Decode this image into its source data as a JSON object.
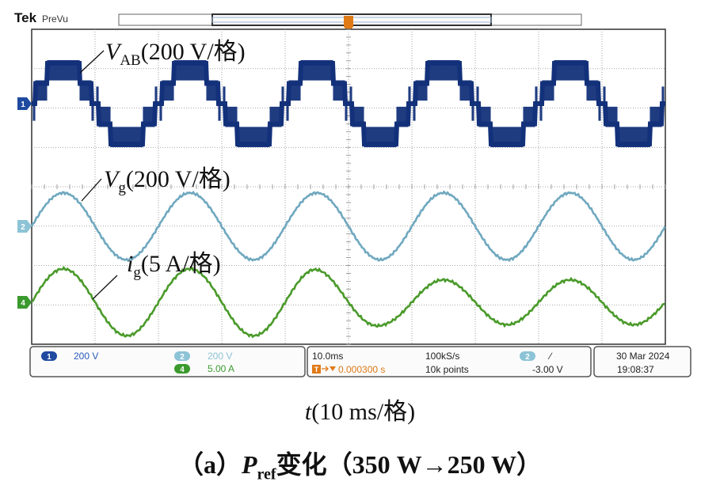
{
  "header": {
    "brand": "Tek",
    "mode": "PreVu"
  },
  "trigger_marker": "T",
  "colors": {
    "ch1": "#13317a",
    "ch2": "#6fa8bf",
    "ch4": "#4a9a2a",
    "grid": "#8a8a8a",
    "frame": "#303030",
    "ch1_badge": "#1f4aa0",
    "ch2_badge": "#8cc3d6",
    "ch4_badge": "#3b9a2e",
    "trigger": "#e07a16"
  },
  "status_bar": {
    "ch1_badge": "1",
    "ch1_scale": "200 V",
    "ch2_badge": "2",
    "ch2_scale": "200 V",
    "ch4_badge": "4",
    "ch4_scale": "5.00 A",
    "timebase": "10.0ms",
    "sample_rate": "100kS/s",
    "trigger_delay": "0.000300 s",
    "record_length": "10k points",
    "trigger_source_badge": "2",
    "trigger_slope": "∕",
    "trigger_level": "-3.00 V",
    "date": "30 Mar  2024",
    "time": "19:08:37"
  },
  "annotations": {
    "vab": {
      "main": "V",
      "sub": "AB",
      "scale": "(200 V/格)"
    },
    "vg": {
      "main": "V",
      "sub": "g",
      "scale": "(200 V/格)"
    },
    "ig": {
      "main": "i",
      "sub": "g",
      "scale": "(5 A/格)"
    }
  },
  "x_axis_label": {
    "var": "t",
    "scale": "(10 ms/格)"
  },
  "caption": {
    "prefix": "（a）",
    "var": "P",
    "sub": "ref",
    "text": "变化（350 W→250 W）"
  },
  "chart_data": {
    "type": "line",
    "x_unit": "ms",
    "x_range": [
      0,
      100
    ],
    "divisions": {
      "x": 10,
      "y": 8
    },
    "period_ms": 20,
    "series": [
      {
        "name": "VAB",
        "channel": "1",
        "waveform": "multilevel step (5-level inverter, PWM)",
        "levels_div": [
          -1.0,
          -0.5,
          0,
          0.5,
          1.0
        ],
        "scale": "200 V/格",
        "phase_ms": 0
      },
      {
        "name": "Vg",
        "channel": "2",
        "waveform": "sine",
        "amplitude_div": 0.85,
        "scale": "200 V/格",
        "phase_ms": 0
      },
      {
        "name": "ig",
        "channel": "4",
        "waveform": "sine",
        "amplitude_div_start": 0.85,
        "amplitude_div_end": 0.57,
        "scale": "5 A/格",
        "phase_ms": 0
      }
    ]
  }
}
